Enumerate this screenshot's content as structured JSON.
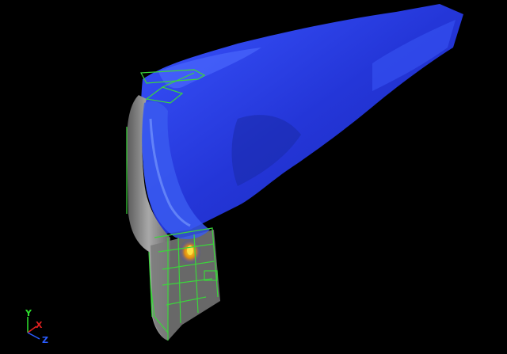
{
  "viewport": {
    "background": "#000000",
    "colors": {
      "surface_blue": "#2a3fe0",
      "surface_blue_light": "#4a6cff",
      "housing_gray": "#8a8a8a",
      "wireframe_green": "#3bd63b",
      "hotspot_yellow": "#f0d020",
      "hotspot_orange": "#e07a10"
    }
  },
  "axes": {
    "y_label": "Y",
    "x_label": "X",
    "z_label": "Z",
    "y_color": "#2ee02e",
    "x_color": "#e02020",
    "z_color": "#2a5cff"
  }
}
